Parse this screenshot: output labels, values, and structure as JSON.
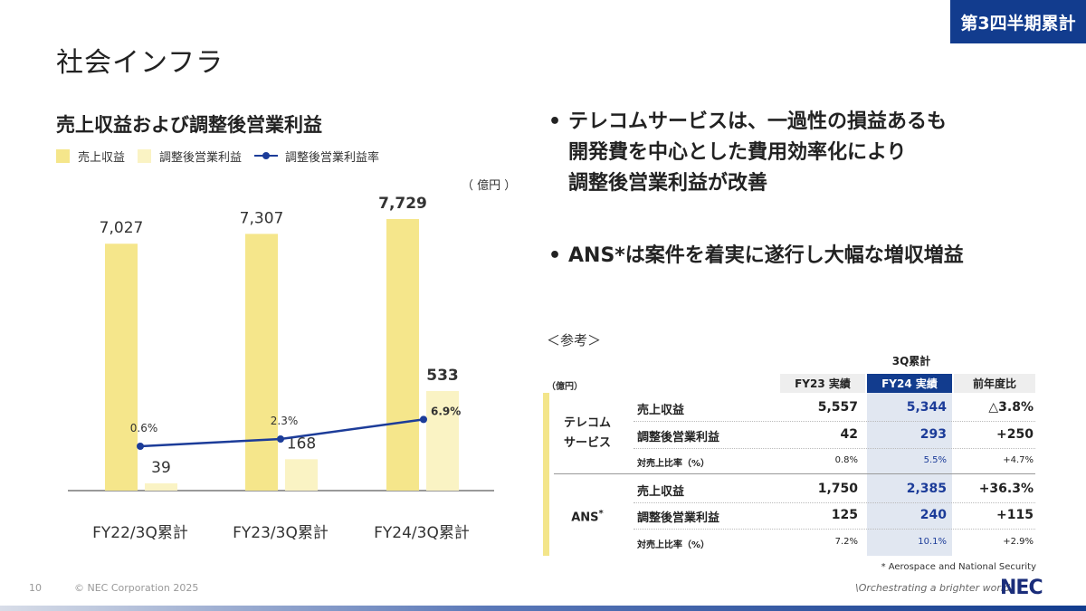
{
  "badge": "第3四半期累計",
  "page_title": "社会インフラ",
  "chart_title": "売上収益および調整後営業利益",
  "legend": [
    "売上収益",
    "調整後営業利益",
    "調整後営業利益率"
  ],
  "unit_label": "（ 億円 ）",
  "colors": {
    "revenue": "#f5e68b",
    "op_income": "#faf3c4",
    "margin_line": "#1c3c99",
    "accent_navy": "#123c8e"
  },
  "chart_data": {
    "type": "bar",
    "categories": [
      "FY22/3Q累計",
      "FY23/3Q累計",
      "FY24/3Q累計"
    ],
    "series": [
      {
        "name": "売上収益",
        "values": [
          7027,
          7307,
          7729
        ],
        "labels": [
          "7,027",
          "7,307",
          "7,729"
        ]
      },
      {
        "name": "調整後営業利益",
        "values": [
          39,
          168,
          533
        ],
        "labels": [
          "39",
          "168",
          "533"
        ]
      },
      {
        "name": "調整後営業利益率",
        "type": "line",
        "values": [
          0.6,
          2.3,
          6.9
        ],
        "labels": [
          "0.6%",
          "2.3%",
          "6.9%"
        ]
      }
    ],
    "ylabel": "億円"
  },
  "bullets": [
    [
      "テレコムサービスは、一過性の損益あるも",
      "開発費を中心とした費用効率化により",
      "調整後営業利益が改善"
    ],
    [
      "ANS*は案件を着実に遂行し大幅な増収増益"
    ]
  ],
  "reference": {
    "label": "＜参考＞",
    "unit": "（億円）",
    "period_header": "3Q累計",
    "columns": [
      "FY23 実績",
      "FY24 実績",
      "前年度比"
    ],
    "segments": [
      {
        "name_lines": [
          "テレコム",
          "サービス"
        ],
        "rows": [
          {
            "label": "売上収益",
            "fy23": "5,557",
            "fy24": "5,344",
            "yoy": "△3.8%"
          },
          {
            "label": "調整後営業利益",
            "fy23": "42",
            "fy24": "293",
            "yoy": "+250"
          },
          {
            "label": "対売上比率（%）",
            "fy23": "0.8%",
            "fy24": "5.5%",
            "yoy": "+4.7%"
          }
        ]
      },
      {
        "name_lines": [
          "ANS"
        ],
        "name_mark": "*",
        "rows": [
          {
            "label": "売上収益",
            "fy23": "1,750",
            "fy24": "2,385",
            "yoy": "+36.3%"
          },
          {
            "label": "調整後営業利益",
            "fy23": "125",
            "fy24": "240",
            "yoy": "+115"
          },
          {
            "label": "対売上比率（%）",
            "fy23": "7.2%",
            "fy24": "10.1%",
            "yoy": "+2.9%"
          }
        ]
      }
    ],
    "footnote": "* Aerospace and National Security"
  },
  "footer": {
    "page_number": "10",
    "copyright": "© NEC Corporation 2025",
    "tagline": "\\Orchestrating a brighter world",
    "logo": "NEC"
  }
}
